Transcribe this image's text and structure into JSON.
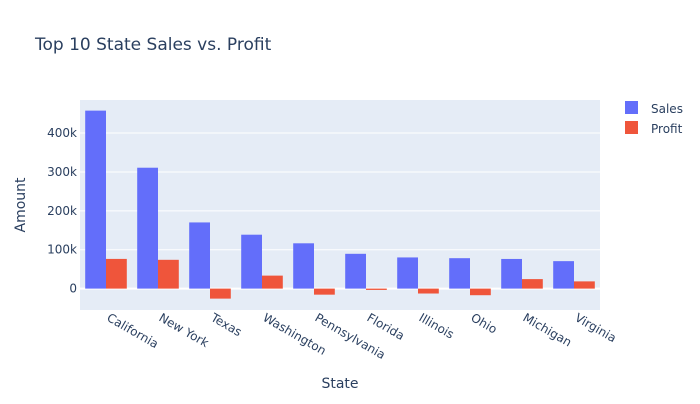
{
  "chart_data": {
    "type": "bar",
    "title": "Top 10 State Sales vs. Profit",
    "xlabel": "State",
    "ylabel": "Amount",
    "categories": [
      "California",
      "New York",
      "Texas",
      "Washington",
      "Pennsylvania",
      "Florida",
      "Illinois",
      "Ohio",
      "Michigan",
      "Virginia"
    ],
    "series": [
      {
        "name": "Sales",
        "color": "#636efa",
        "values": [
          457688,
          310876,
          170188,
          138641,
          116512,
          89474,
          80166,
          78258,
          76270,
          70637
        ]
      },
      {
        "name": "Profit",
        "color": "#ef553b",
        "values": [
          76381,
          74039,
          -25729,
          33403,
          -15560,
          -3399,
          -12608,
          -16971,
          24463,
          18598
        ]
      }
    ],
    "ylim": [
      -55000,
      485000
    ],
    "yticks": [
      0,
      100000,
      200000,
      300000,
      400000
    ],
    "ytick_labels": [
      "0",
      "100k",
      "200k",
      "300k",
      "400k"
    ],
    "grid": true,
    "legend_position": "top-right",
    "plot_background": "#e5ecf6"
  }
}
